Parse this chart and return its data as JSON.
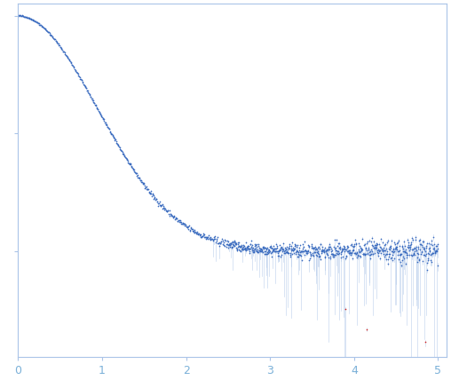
{
  "title": "",
  "xlabel": "",
  "ylabel": "",
  "xlim": [
    0.0,
    5.1
  ],
  "ylim": [
    -0.45,
    1.05
  ],
  "background_color": "#ffffff",
  "dot_color_blue": "#3a6bbf",
  "dot_color_red": "#cc2222",
  "error_color": "#aac4e8",
  "axis_color": "#aac4e8",
  "tick_color": "#aac4e8",
  "tick_label_color": "#7ab0d8",
  "figsize": [
    5.08,
    4.37
  ],
  "dpi": 100,
  "x_ticks": [
    0,
    1,
    2,
    3,
    4,
    5
  ],
  "seed": 42,
  "q_max": 5.0
}
